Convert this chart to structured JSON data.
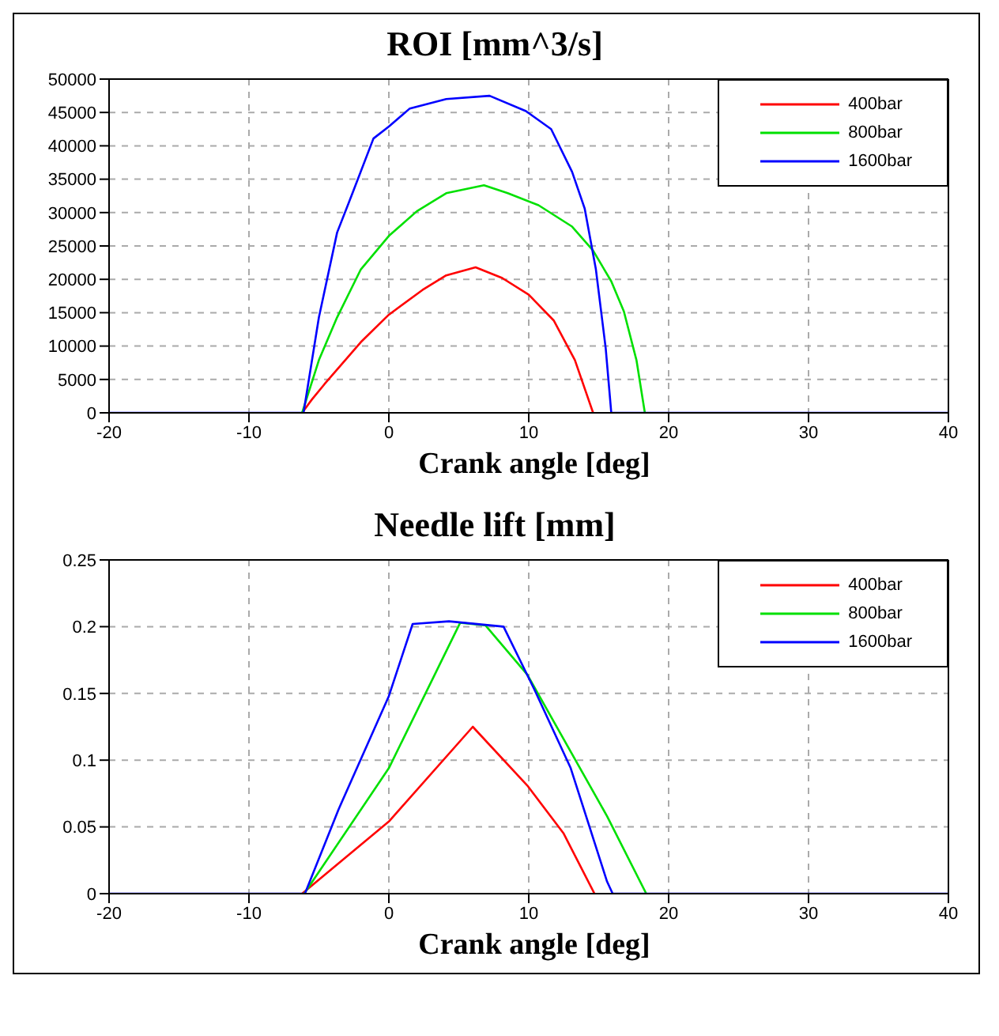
{
  "chart_data": [
    {
      "type": "line",
      "title": "ROI [mm^3/s]",
      "xlabel": "Crank angle [deg]",
      "xlim": [
        -20,
        40
      ],
      "xticks": [
        -20,
        -10,
        0,
        10,
        20,
        30,
        40
      ],
      "ylim": [
        0,
        50000
      ],
      "yticks": [
        0,
        5000,
        10000,
        15000,
        20000,
        25000,
        30000,
        35000,
        40000,
        45000,
        50000
      ],
      "grid": true,
      "legend": "top right",
      "series": [
        {
          "name": "400bar",
          "color": "#ff0000",
          "x": [
            -6.2,
            -5.5,
            -4.6,
            -2,
            0,
            2.4,
            4.1,
            6.2,
            8.1,
            10,
            11.8,
            13.3,
            14.6
          ],
          "values": [
            0,
            2000,
            4300,
            10600,
            14700,
            18400,
            20600,
            21800,
            20200,
            17700,
            13800,
            7900,
            0
          ]
        },
        {
          "name": "800bar",
          "color": "#00e000",
          "x": [
            -6.2,
            -5,
            -3.7,
            -2,
            0,
            2,
            4.1,
            6.8,
            8.5,
            10.7,
            13.1,
            14.6,
            15.9,
            16.8,
            17.7,
            18.3
          ],
          "values": [
            0,
            7900,
            14300,
            21500,
            26500,
            30200,
            32900,
            34100,
            32900,
            31100,
            27900,
            24300,
            19700,
            15200,
            7900,
            0
          ]
        },
        {
          "name": "1600bar",
          "color": "#0000ff",
          "x": [
            -20,
            -6.1,
            -5,
            -3.7,
            -2.6,
            -1.1,
            0,
            1.5,
            4.1,
            7.2,
            9.8,
            11.6,
            13.1,
            14,
            14.8,
            15.5,
            15.9,
            40
          ],
          "values": [
            0,
            0,
            14300,
            27000,
            32900,
            41100,
            42900,
            45600,
            47000,
            47500,
            45200,
            42500,
            36100,
            30600,
            21500,
            9700,
            0,
            0
          ]
        }
      ]
    },
    {
      "type": "line",
      "title": "Needle lift [mm]",
      "xlabel": "Crank angle [deg]",
      "xlim": [
        -20,
        40
      ],
      "xticks": [
        -20,
        -10,
        0,
        10,
        20,
        30,
        40
      ],
      "ylim": [
        0,
        0.25
      ],
      "yticks": [
        0,
        0.05,
        0.1,
        0.15,
        0.2,
        0.25
      ],
      "grid": true,
      "legend": "top right",
      "series": [
        {
          "name": "400bar",
          "color": "#ff0000",
          "x": [
            -6.2,
            0,
            6,
            9.9,
            12.5,
            14.7
          ],
          "values": [
            0,
            0.054,
            0.125,
            0.081,
            0.045,
            0
          ]
        },
        {
          "name": "800bar",
          "color": "#00e000",
          "x": [
            -6.05,
            0,
            5.1,
            6.9,
            9.9,
            15.6,
            18.4
          ],
          "values": [
            0,
            0.094,
            0.203,
            0.201,
            0.164,
            0.058,
            0
          ]
        },
        {
          "name": "1600bar",
          "color": "#0000ff",
          "x": [
            -20,
            -6,
            -3.6,
            0,
            1.7,
            4.3,
            8.2,
            10.4,
            13,
            15.6,
            16,
            40
          ],
          "values": [
            0,
            0,
            0.063,
            0.148,
            0.202,
            0.204,
            0.2,
            0.153,
            0.094,
            0.009,
            0,
            0
          ]
        }
      ]
    }
  ]
}
